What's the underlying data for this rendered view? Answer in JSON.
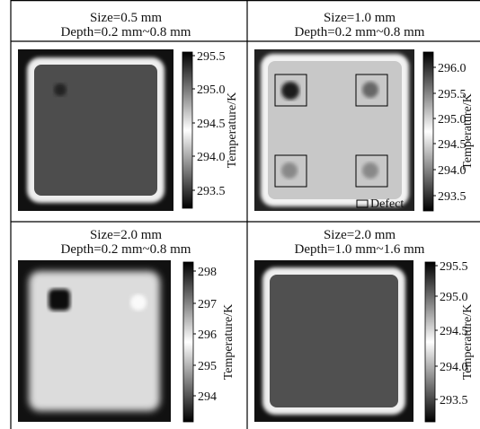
{
  "panels": [
    {
      "size": "Size=0.5 mm",
      "depth": "Depth=0.2 mm~0.8 mm",
      "colorbar_label": "Temperature/K",
      "ticks": [
        "295.5",
        "295.0",
        "294.5",
        "294.0",
        "293.5"
      ]
    },
    {
      "size": "Size=1.0 mm",
      "depth": "Depth=0.2 mm~0.8 mm",
      "colorbar_label": "Temperature/K",
      "ticks": [
        "296.0",
        "295.5",
        "295.0",
        "294.5",
        "294.0",
        "293.5"
      ],
      "legend": "Defect"
    },
    {
      "size": "Size=2.0 mm",
      "depth": "Depth=0.2 mm~0.8 mm",
      "colorbar_label": "Temperature/K",
      "ticks": [
        "298",
        "297",
        "296",
        "295",
        "294"
      ]
    },
    {
      "size": "Size=2.0 mm",
      "depth": "Depth=1.0 mm~1.6 mm",
      "colorbar_label": "Temperature/K",
      "ticks": [
        "295.5",
        "295.0",
        "294.5",
        "294.0",
        "293.5"
      ]
    }
  ]
}
